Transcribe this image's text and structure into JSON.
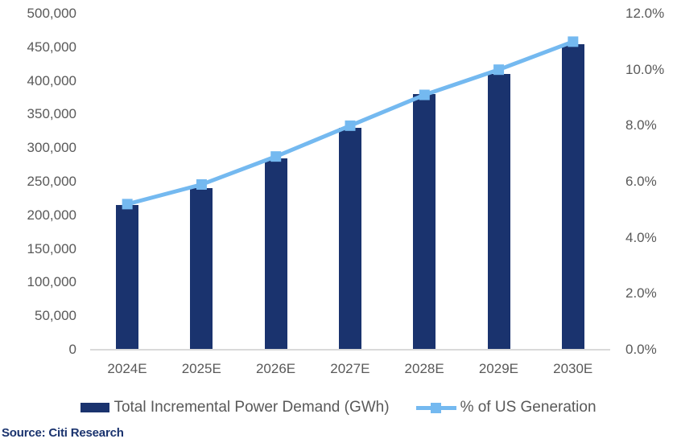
{
  "source": "Source: Citi Research",
  "colors": {
    "bar": "#1A336E",
    "line": "#74B9F0",
    "axis_text": "#595959",
    "baseline": "#D9D9D9",
    "source_text": "#1A336E"
  },
  "legend": {
    "items": [
      {
        "label": "Total Incremental Power Demand (GWh)",
        "swatch": "bar"
      },
      {
        "label": "% of US Generation",
        "swatch": "line-with-square-marker"
      }
    ]
  },
  "chart_data": {
    "type": "bar",
    "subtype": "combo-bar-line-dual-axis",
    "title": "",
    "categories": [
      "2024E",
      "2025E",
      "2026E",
      "2027E",
      "2028E",
      "2029E",
      "2030E"
    ],
    "series": [
      {
        "name": "Total Incremental Power Demand (GWh)",
        "type": "bar",
        "axis": "left",
        "color": "#1A336E",
        "values": [
          215000,
          240000,
          285000,
          330000,
          380000,
          410000,
          455000
        ]
      },
      {
        "name": "% of US Generation",
        "type": "line",
        "axis": "right",
        "color": "#74B9F0",
        "marker": "square",
        "values": [
          5.2,
          5.9,
          6.9,
          8.0,
          9.1,
          10.0,
          11.0
        ]
      }
    ],
    "left_axis": {
      "min": 0,
      "max": 500000,
      "step": 50000,
      "tick_labels": [
        "500,000",
        "450,000",
        "400,000",
        "350,000",
        "300,000",
        "250,000",
        "200,000",
        "150,000",
        "100,000",
        "50,000",
        "0"
      ]
    },
    "right_axis": {
      "min": 0,
      "max": 12,
      "step": 2,
      "tick_labels": [
        "12.0%",
        "10.0%",
        "8.0%",
        "6.0%",
        "4.0%",
        "2.0%",
        "0.0%"
      ]
    },
    "grid": false,
    "legend_position": "bottom"
  }
}
